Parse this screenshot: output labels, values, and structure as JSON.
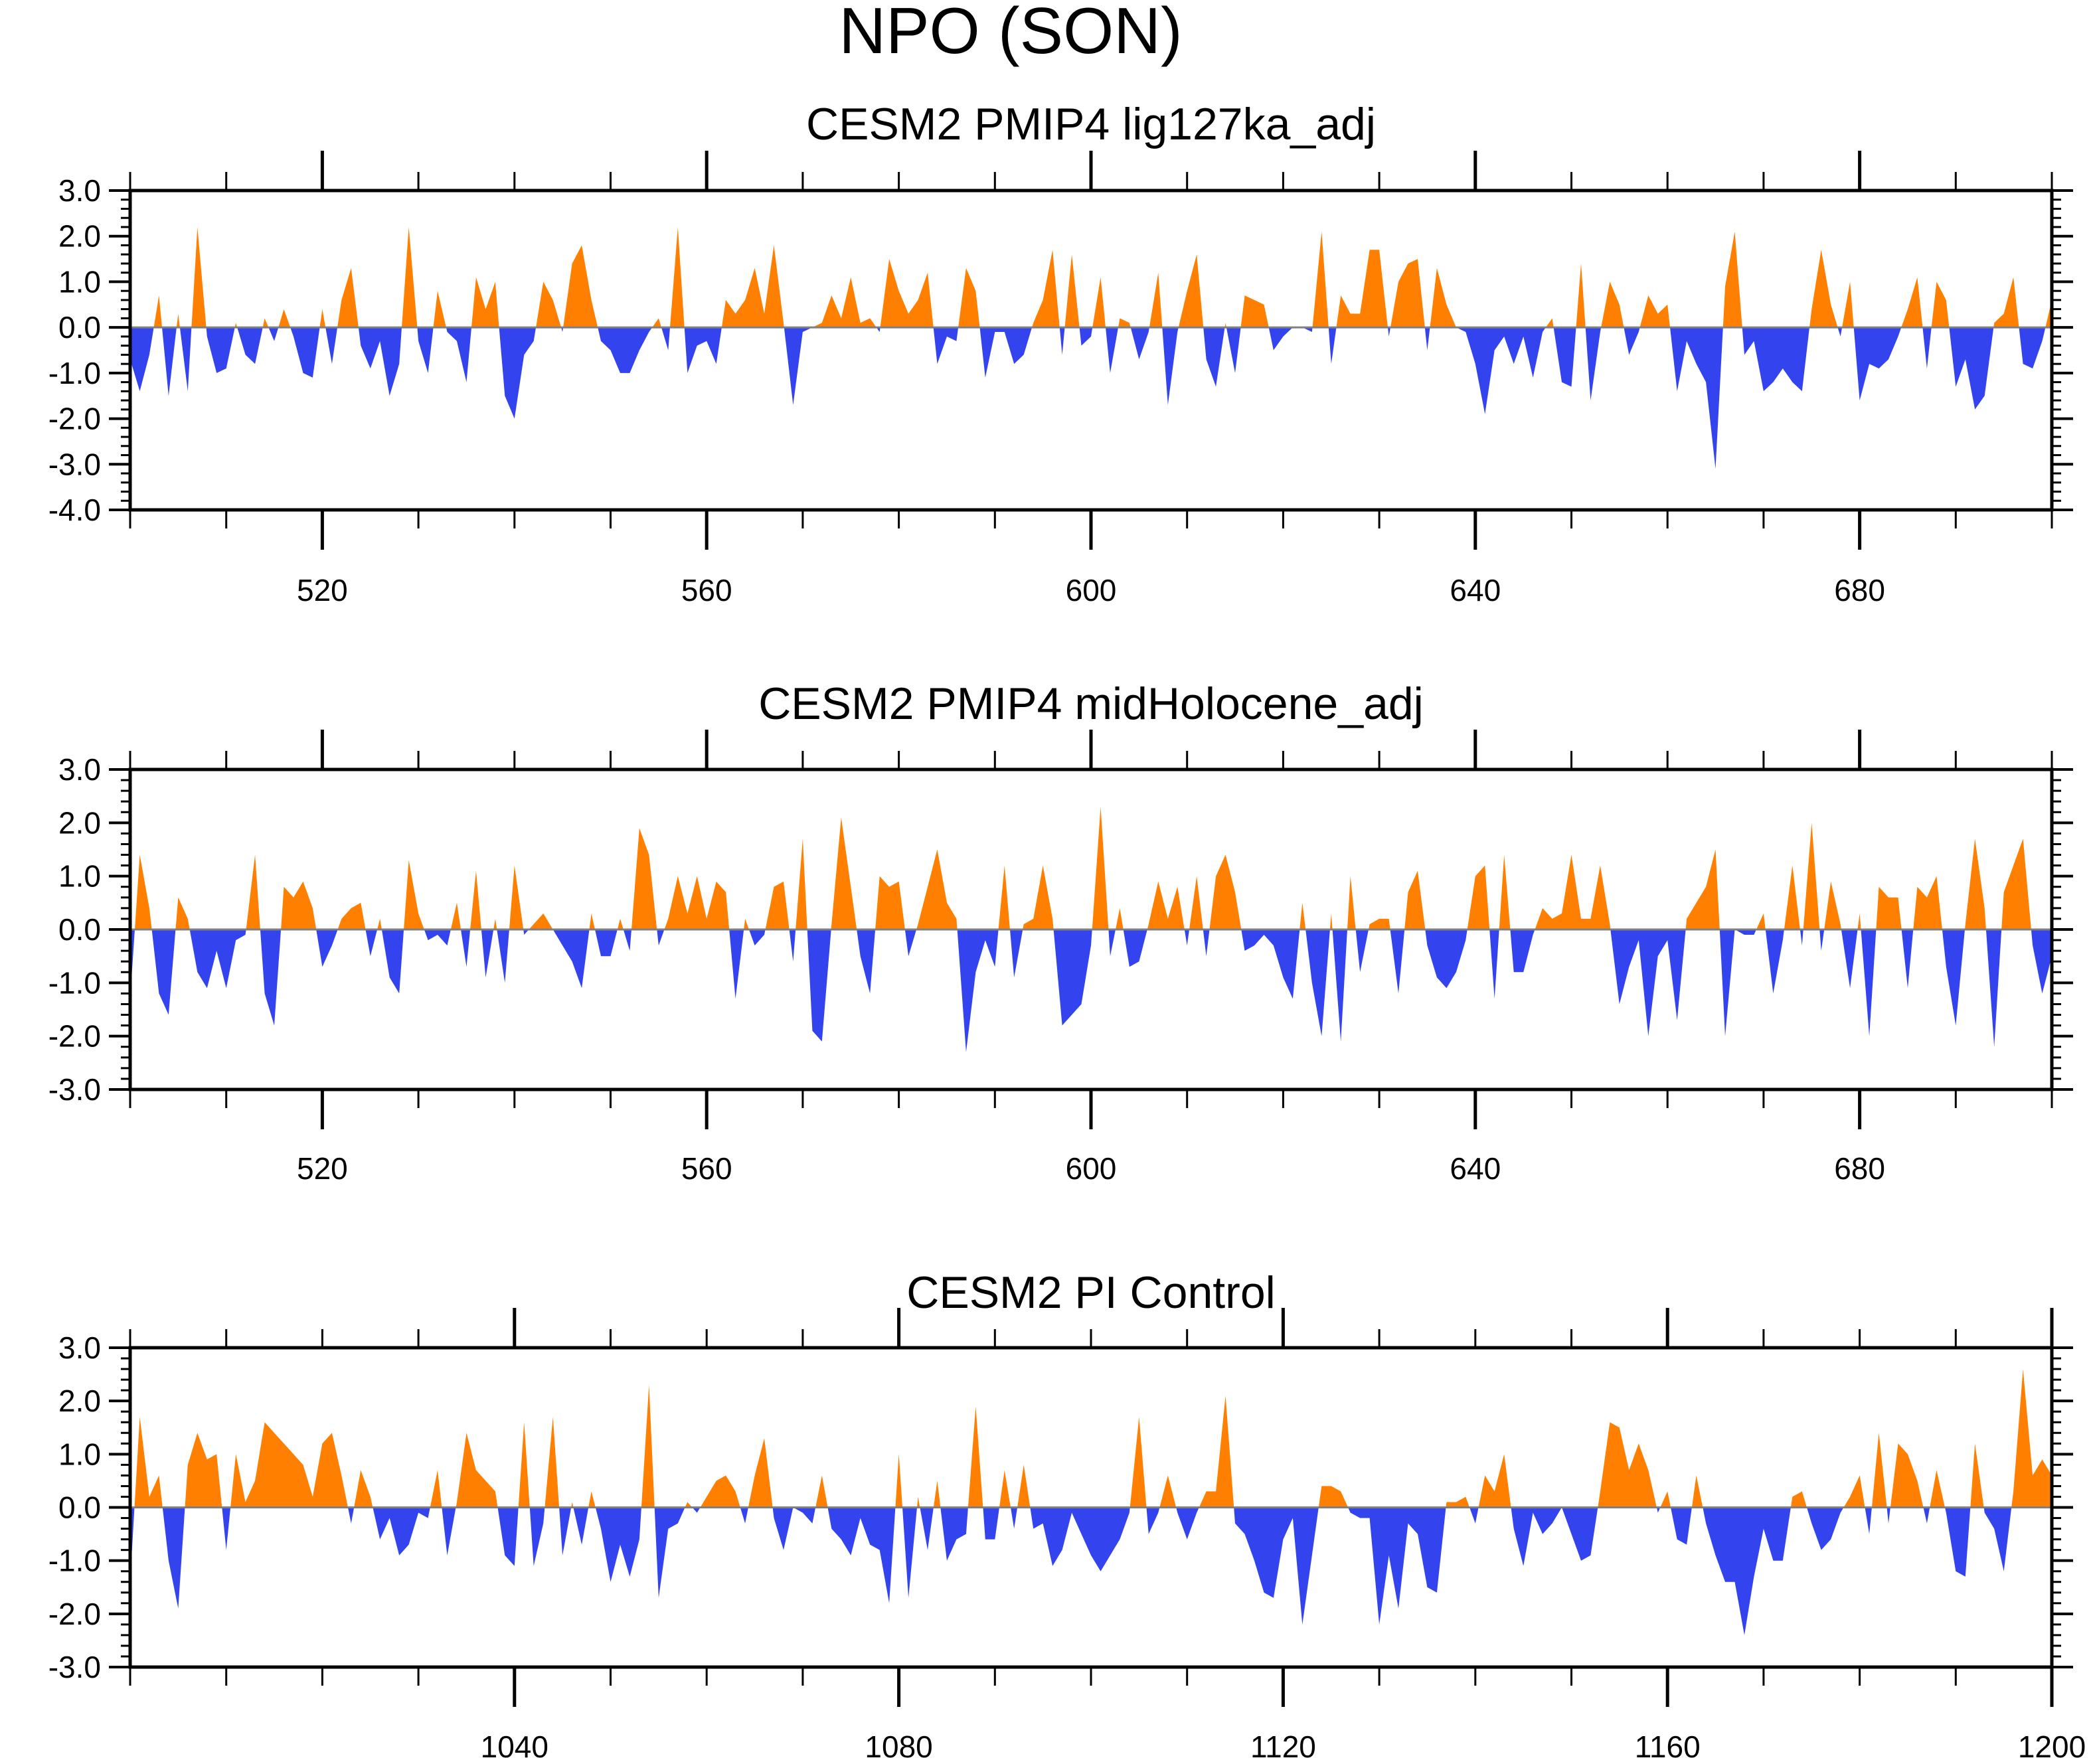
{
  "figure": {
    "title": "NPO (SON)"
  },
  "colors": {
    "positive": "#ff8000",
    "negative": "#3344ee",
    "zero_line": "#808080",
    "axis": "#000000"
  },
  "chart_data": [
    {
      "type": "area",
      "title": "CESM2 PMIP4 lig127ka_adj",
      "xlim": [
        500,
        700
      ],
      "ylim": [
        -4,
        3
      ],
      "x_ticks": [
        520,
        560,
        600,
        640,
        680
      ],
      "x_tick_labels": [
        "520",
        "560",
        "600",
        "640",
        "680"
      ],
      "y_ticks": [
        3,
        2,
        1,
        0,
        -1,
        -2,
        -3,
        -4
      ],
      "y_tick_labels": [
        "3.0",
        "2.0",
        "1.0",
        "0.0",
        "-1.0",
        "-2.0",
        "-3.0",
        "-4.0"
      ],
      "baseline": 0,
      "x_start": 500,
      "values": [
        -0.7,
        -1.4,
        -0.6,
        0.7,
        -1.5,
        0.3,
        -1.4,
        2.2,
        -0.2,
        -1.0,
        -0.9,
        0.1,
        -0.6,
        -0.8,
        0.2,
        -0.3,
        0.4,
        -0.2,
        -1.0,
        -1.1,
        0.4,
        -0.8,
        0.6,
        1.3,
        -0.4,
        -0.9,
        -0.3,
        -1.5,
        -0.8,
        2.2,
        -0.3,
        -1.0,
        0.8,
        -0.1,
        -0.3,
        -1.2,
        1.1,
        0.4,
        1.0,
        -1.5,
        -2.0,
        -0.6,
        -0.3,
        1.0,
        0.6,
        -0.1,
        1.4,
        1.8,
        0.6,
        -0.3,
        -0.5,
        -1.0,
        -1.0,
        -0.5,
        -0.1,
        0.2,
        -0.5,
        2.2,
        -1.0,
        -0.4,
        -0.3,
        -0.8,
        0.6,
        0.3,
        0.6,
        1.3,
        0.3,
        1.8,
        0.1,
        -1.7,
        -0.1,
        0.0,
        0.1,
        0.7,
        0.2,
        1.1,
        0.1,
        0.2,
        -0.1,
        1.5,
        0.8,
        0.3,
        0.6,
        1.2,
        -0.8,
        -0.2,
        -0.3,
        1.3,
        0.8,
        -1.1,
        -0.1,
        -0.1,
        -0.8,
        -0.6,
        0.1,
        0.6,
        1.7,
        -0.6,
        1.6,
        -0.4,
        -0.2,
        1.1,
        -1.0,
        0.2,
        0.1,
        -0.7,
        -0.1,
        1.2,
        -1.7,
        -0.1,
        0.8,
        1.6,
        -0.7,
        -1.3,
        0.1,
        -1.0,
        0.7,
        0.6,
        0.5,
        -0.5,
        -0.2,
        0.0,
        0.0,
        -0.1,
        2.1,
        -0.8,
        0.7,
        0.3,
        0.3,
        1.7,
        1.7,
        -0.2,
        1.0,
        1.4,
        1.5,
        -0.5,
        1.3,
        0.5,
        0.0,
        -0.1,
        -0.8,
        -1.9,
        -0.5,
        -0.2,
        -0.8,
        -0.2,
        -1.1,
        -0.1,
        0.2,
        -1.2,
        -1.3,
        1.4,
        -1.6,
        -0.1,
        1.0,
        0.5,
        -0.6,
        -0.1,
        0.7,
        0.3,
        0.5,
        -1.4,
        -0.3,
        -0.8,
        -1.2,
        -3.1,
        0.9,
        2.1,
        -0.6,
        -0.3,
        -1.4,
        -1.2,
        -0.9,
        -1.2,
        -1.4,
        0.4,
        1.7,
        0.5,
        -0.2,
        1.0,
        -1.6,
        -0.8,
        -0.9,
        -0.7,
        -0.2,
        0.4,
        1.1,
        -0.9,
        1.0,
        0.6,
        -1.3,
        -0.7,
        -1.8,
        -1.5,
        0.1,
        0.3,
        1.1,
        -0.8,
        -0.9,
        -0.3,
        0.6,
        -0.8,
        0.7,
        -0.7,
        -0.9,
        0.2,
        -0.4,
        -0.4,
        0.9,
        0.7
      ]
    },
    {
      "type": "area",
      "title": "CESM2 PMIP4 midHolocene_adj",
      "xlim": [
        500,
        700
      ],
      "ylim": [
        -3,
        3
      ],
      "x_ticks": [
        520,
        560,
        600,
        640,
        680
      ],
      "x_tick_labels": [
        "520",
        "560",
        "600",
        "640",
        "680"
      ],
      "y_ticks": [
        3,
        2,
        1,
        0,
        -1,
        -2,
        -3
      ],
      "y_tick_labels": [
        "3.0",
        "2.0",
        "1.0",
        "0.0",
        "-1.0",
        "-2.0",
        "-3.0"
      ],
      "baseline": 0,
      "x_start": 500,
      "values": [
        -1.3,
        1.4,
        0.4,
        -1.2,
        -1.6,
        0.6,
        0.2,
        -0.8,
        -1.1,
        -0.4,
        -1.1,
        -0.2,
        -0.1,
        1.4,
        -1.2,
        -1.8,
        0.8,
        0.6,
        0.9,
        0.4,
        -0.7,
        -0.3,
        0.2,
        0.4,
        0.5,
        -0.5,
        0.2,
        -0.9,
        -1.2,
        1.3,
        0.3,
        -0.2,
        -0.1,
        -0.3,
        0.5,
        -0.7,
        1.1,
        -0.9,
        0.2,
        -1.0,
        1.2,
        -0.1,
        0.1,
        0.3,
        0.0,
        -0.3,
        -0.6,
        -1.1,
        0.3,
        -0.5,
        -0.5,
        0.2,
        -0.4,
        1.9,
        1.4,
        -0.3,
        0.2,
        1.0,
        0.3,
        1.0,
        0.2,
        0.9,
        0.7,
        -1.3,
        0.2,
        -0.3,
        -0.1,
        0.8,
        0.9,
        -0.6,
        1.7,
        -1.9,
        -2.1,
        0.1,
        2.1,
        0.8,
        -0.5,
        -1.2,
        1.0,
        0.8,
        0.9,
        -0.5,
        0.1,
        0.8,
        1.5,
        0.5,
        0.2,
        -2.3,
        -0.8,
        -0.2,
        -0.7,
        1.2,
        -0.9,
        0.1,
        0.2,
        1.2,
        0.2,
        -1.8,
        -1.6,
        -1.4,
        -0.3,
        2.3,
        -0.5,
        0.4,
        -0.7,
        -0.6,
        0.1,
        0.9,
        0.2,
        0.8,
        -0.3,
        1.0,
        -0.5,
        1.0,
        1.4,
        0.7,
        -0.4,
        -0.3,
        -0.1,
        -0.3,
        -0.9,
        -1.3,
        0.5,
        -1.0,
        -2.0,
        0.3,
        -2.1,
        1.0,
        -0.8,
        0.1,
        0.2,
        0.2,
        -1.2,
        0.7,
        1.1,
        -0.3,
        -0.9,
        -1.1,
        -0.8,
        -0.2,
        1.0,
        1.2,
        -1.3,
        1.4,
        -0.8,
        -0.8,
        -0.1,
        0.4,
        0.2,
        0.3,
        1.4,
        0.2,
        0.2,
        1.2,
        0.1,
        -1.4,
        -0.7,
        -0.2,
        -2.0,
        -0.5,
        -0.2,
        -1.7,
        0.2,
        0.5,
        0.8,
        1.5,
        -2.0,
        0.0,
        -0.1,
        -0.1,
        0.3,
        -1.2,
        -0.2,
        1.2,
        -0.3,
        2.0,
        -0.4,
        0.9,
        0.1,
        -1.1,
        0.3,
        -2.0,
        0.8,
        0.6,
        0.6,
        -1.1,
        0.8,
        0.6,
        1.0,
        -0.7,
        -1.8,
        0.1,
        1.7,
        0.4,
        -2.2,
        0.7,
        1.2,
        1.7,
        -0.3,
        -1.2,
        -0.5,
        -0.1,
        1.1,
        0.5,
        1.1,
        0.8,
        -0.5,
        1.9
      ]
    },
    {
      "type": "area",
      "title": "CESM2 PI Control",
      "xlim": [
        1000,
        1200
      ],
      "ylim": [
        -3,
        3
      ],
      "x_ticks": [
        1040,
        1080,
        1120,
        1160,
        1200
      ],
      "x_tick_labels": [
        "1040",
        "1080",
        "1120",
        "1160",
        "1200"
      ],
      "y_ticks": [
        3,
        2,
        1,
        0,
        -1,
        -2,
        -3
      ],
      "y_tick_labels": [
        "3.0",
        "2.0",
        "1.0",
        "0.0",
        "-1.0",
        "-2.0",
        "-3.0"
      ],
      "baseline": 0,
      "x_start": 1000,
      "values": [
        -1.4,
        1.7,
        0.2,
        0.6,
        -1.0,
        -1.9,
        0.8,
        1.4,
        0.9,
        1.0,
        -0.8,
        1.0,
        0.1,
        0.5,
        1.6,
        1.4,
        1.2,
        1.0,
        0.8,
        0.2,
        1.2,
        1.4,
        0.6,
        -0.3,
        0.7,
        0.2,
        -0.6,
        -0.2,
        -0.9,
        -0.7,
        -0.1,
        -0.2,
        0.7,
        -0.9,
        0.1,
        1.4,
        0.7,
        0.5,
        0.3,
        -0.9,
        -1.1,
        1.6,
        -1.1,
        -0.3,
        1.7,
        -0.9,
        0.1,
        -0.7,
        0.3,
        -0.4,
        -1.4,
        -0.7,
        -1.3,
        -0.6,
        2.3,
        -1.7,
        -0.4,
        -0.3,
        0.1,
        -0.1,
        0.2,
        0.5,
        0.6,
        0.3,
        -0.3,
        0.6,
        1.3,
        -0.2,
        -0.8,
        0.0,
        -0.1,
        -0.3,
        0.6,
        -0.4,
        -0.6,
        -0.9,
        -0.2,
        -0.7,
        -0.8,
        -1.8,
        1.0,
        -1.7,
        0.2,
        -0.8,
        0.5,
        -1.0,
        -0.6,
        -0.5,
        1.9,
        -0.6,
        -0.6,
        0.7,
        -0.4,
        0.8,
        -0.4,
        -0.3,
        -1.1,
        -0.8,
        -0.1,
        -0.5,
        -0.9,
        -1.2,
        -0.9,
        -0.6,
        -0.1,
        1.7,
        -0.5,
        -0.1,
        0.6,
        -0.1,
        -0.6,
        -0.1,
        0.3,
        0.3,
        2.1,
        -0.3,
        -0.5,
        -1.0,
        -1.6,
        -1.7,
        -0.6,
        -0.2,
        -2.2,
        -0.9,
        0.4,
        0.4,
        0.3,
        -0.1,
        -0.2,
        -0.2,
        -2.2,
        -0.9,
        -1.9,
        -0.3,
        -0.5,
        -1.5,
        -1.6,
        0.1,
        0.1,
        0.2,
        -0.3,
        0.6,
        0.3,
        1.0,
        -0.4,
        -1.1,
        -0.1,
        -0.5,
        -0.3,
        0.0,
        -0.5,
        -1.0,
        -0.9,
        0.3,
        1.6,
        1.5,
        0.7,
        1.2,
        0.7,
        -0.1,
        0.3,
        -0.6,
        -0.7,
        0.6,
        -0.3,
        -0.9,
        -1.4,
        -1.4,
        -2.4,
        -1.3,
        -0.4,
        -1.0,
        -1.0,
        0.2,
        0.3,
        -0.3,
        -0.8,
        -0.6,
        -0.1,
        0.2,
        0.6,
        -0.5,
        1.4,
        -0.3,
        1.2,
        1.0,
        0.5,
        -0.3,
        0.7,
        -0.1,
        -1.2,
        -1.3,
        1.2,
        -0.1,
        -0.4,
        -1.2,
        0.3,
        2.6,
        0.6,
        0.9,
        0.6,
        -0.2,
        -0.7,
        -0.7,
        0.7,
        0.6,
        0.3,
        1.3,
        -0.9,
        0.0,
        -1.6
      ]
    }
  ]
}
